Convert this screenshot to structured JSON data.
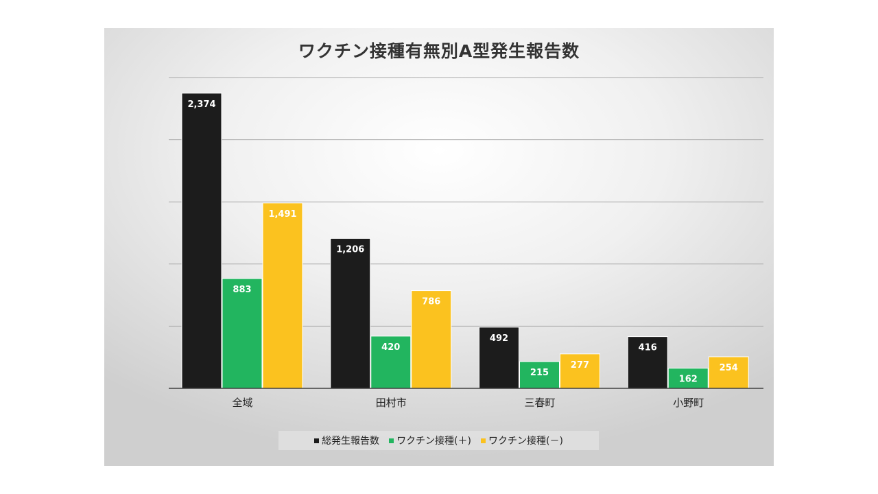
{
  "chart_data": {
    "type": "bar",
    "title": "ワクチン接種有無別A型発生報告数",
    "categories": [
      "全域",
      "田村市",
      "三春町",
      "小野町"
    ],
    "series": [
      {
        "name": "総発生報告数",
        "color": "#1c1c1c",
        "values": [
          2374,
          1206,
          492,
          416
        ],
        "labels": [
          "2,374",
          "1,206",
          "492",
          "416"
        ]
      },
      {
        "name": "ワクチン接種(＋)",
        "color": "#22b55f",
        "values": [
          883,
          420,
          215,
          162
        ],
        "labels": [
          "883",
          "420",
          "215",
          "162"
        ]
      },
      {
        "name": "ワクチン接種(－)",
        "color": "#fbc21f",
        "values": [
          1491,
          786,
          277,
          254
        ],
        "labels": [
          "1,491",
          "786",
          "277",
          "254"
        ]
      }
    ],
    "ylim": [
      0,
      2500
    ],
    "y_gridlines": [
      500,
      1000,
      1500,
      2000,
      2500
    ],
    "grid": true,
    "legend_position": "bottom"
  }
}
